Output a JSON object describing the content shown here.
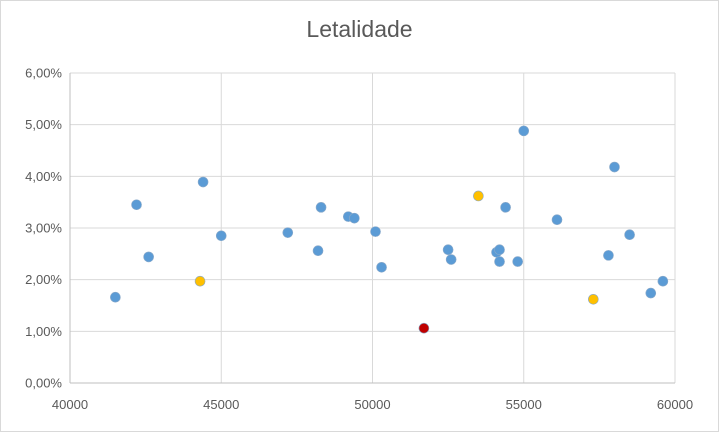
{
  "chart_data": {
    "type": "scatter",
    "title": "Letalidade",
    "xlabel": "",
    "ylabel": "",
    "xlim": [
      40000,
      60000
    ],
    "ylim": [
      0,
      0.06
    ],
    "x_ticks": [
      {
        "value": 40000,
        "label": "40000"
      },
      {
        "value": 45000,
        "label": "45000"
      },
      {
        "value": 50000,
        "label": "50000"
      },
      {
        "value": 55000,
        "label": "55000"
      },
      {
        "value": 60000,
        "label": "60000"
      }
    ],
    "y_ticks": [
      {
        "value": 0.0,
        "label": "0,00%"
      },
      {
        "value": 0.01,
        "label": "1,00%"
      },
      {
        "value": 0.02,
        "label": "2,00%"
      },
      {
        "value": 0.03,
        "label": "3,00%"
      },
      {
        "value": 0.04,
        "label": "4,00%"
      },
      {
        "value": 0.05,
        "label": "5,00%"
      },
      {
        "value": 0.06,
        "label": "6,00%"
      }
    ],
    "grid": "major",
    "legend": "none",
    "colors": {
      "blue": "#5b9bd5",
      "yellow": "#ffc000",
      "red": "#c00000"
    },
    "points": [
      {
        "x": 41500,
        "y": 0.0166,
        "color": "blue"
      },
      {
        "x": 42200,
        "y": 0.0345,
        "color": "blue"
      },
      {
        "x": 42600,
        "y": 0.0244,
        "color": "blue"
      },
      {
        "x": 44300,
        "y": 0.0197,
        "color": "yellow"
      },
      {
        "x": 44400,
        "y": 0.0389,
        "color": "blue"
      },
      {
        "x": 45000,
        "y": 0.0285,
        "color": "blue"
      },
      {
        "x": 47200,
        "y": 0.0291,
        "color": "blue"
      },
      {
        "x": 48200,
        "y": 0.0256,
        "color": "blue"
      },
      {
        "x": 48300,
        "y": 0.034,
        "color": "blue"
      },
      {
        "x": 49200,
        "y": 0.0322,
        "color": "blue"
      },
      {
        "x": 49400,
        "y": 0.0319,
        "color": "blue"
      },
      {
        "x": 50100,
        "y": 0.0293,
        "color": "blue"
      },
      {
        "x": 50300,
        "y": 0.0224,
        "color": "blue"
      },
      {
        "x": 51700,
        "y": 0.0106,
        "color": "red"
      },
      {
        "x": 52500,
        "y": 0.0258,
        "color": "blue"
      },
      {
        "x": 52600,
        "y": 0.0239,
        "color": "blue"
      },
      {
        "x": 53500,
        "y": 0.0362,
        "color": "yellow"
      },
      {
        "x": 54100,
        "y": 0.0253,
        "color": "blue"
      },
      {
        "x": 54200,
        "y": 0.0258,
        "color": "blue"
      },
      {
        "x": 54200,
        "y": 0.0235,
        "color": "blue"
      },
      {
        "x": 54400,
        "y": 0.034,
        "color": "blue"
      },
      {
        "x": 54800,
        "y": 0.0235,
        "color": "blue"
      },
      {
        "x": 55000,
        "y": 0.0488,
        "color": "blue"
      },
      {
        "x": 56100,
        "y": 0.0316,
        "color": "blue"
      },
      {
        "x": 57300,
        "y": 0.0162,
        "color": "yellow"
      },
      {
        "x": 57800,
        "y": 0.0247,
        "color": "blue"
      },
      {
        "x": 58000,
        "y": 0.0418,
        "color": "blue"
      },
      {
        "x": 58500,
        "y": 0.0287,
        "color": "blue"
      },
      {
        "x": 59200,
        "y": 0.0174,
        "color": "blue"
      },
      {
        "x": 59600,
        "y": 0.0197,
        "color": "blue"
      }
    ]
  }
}
